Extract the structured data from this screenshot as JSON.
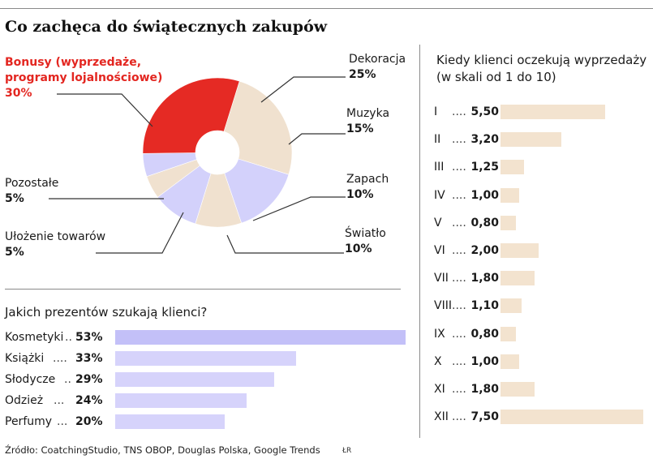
{
  "title": "Co zachęca do świątecznych zakupów",
  "source": "Źródło: CoatchingStudio, TNS OBOP, Douglas Polska, Google Trends",
  "initials": "ŁR",
  "chart_data": [
    {
      "type": "pie",
      "title": "Co zachęca do świątecznych zakupów",
      "slices": [
        {
          "label": "Dekoracja",
          "value": 25,
          "display": "25%",
          "color": "#f0e1cf"
        },
        {
          "label": "Muzyka",
          "value": 15,
          "display": "15%",
          "color": "#d3d1fb"
        },
        {
          "label": "Zapach",
          "value": 10,
          "display": "10%",
          "color": "#f0e1cf"
        },
        {
          "label": "Światło",
          "value": 10,
          "display": "10%",
          "color": "#d3d1fb"
        },
        {
          "label": "Ułożenie towarów",
          "value": 5,
          "display": "5%",
          "color": "#f0e1cf"
        },
        {
          "label": "Pozostałe",
          "value": 5,
          "display": "5%",
          "color": "#d3d1fb"
        },
        {
          "label": "Bonusy (wyprzedaże, programy lojalnościowe)",
          "line1": "Bonusy (wyprzedaże,",
          "line2": "programy lojalnościowe)",
          "value": 30,
          "display": "30%",
          "color": "#e52a24"
        }
      ]
    },
    {
      "type": "bar",
      "title": "Jakich prezentów szukają klienci?",
      "categories": [
        "Kosmetyki",
        "Książki",
        "Słodycze",
        "Odzież",
        "Perfumy"
      ],
      "values": [
        53,
        33,
        29,
        24,
        20
      ],
      "value_labels": [
        "53%",
        "33%",
        "29%",
        "24%",
        "20%"
      ],
      "dots": [
        "..",
        "....",
        "..",
        "...",
        "..."
      ]
    },
    {
      "type": "bar",
      "title": "Kiedy klienci oczekują wyprzedaży",
      "title_line1": "Kiedy klienci oczekują wyprzedaży",
      "title_line2": "(w skali od 1 do 10)",
      "categories": [
        "I",
        "II",
        "III",
        "IV",
        "V",
        "VI",
        "VII",
        "VIII",
        "IX",
        "X",
        "XI",
        "XII"
      ],
      "values": [
        5.5,
        3.2,
        1.25,
        1.0,
        0.8,
        2.0,
        1.8,
        1.1,
        0.8,
        1.0,
        1.8,
        7.5
      ],
      "value_labels": [
        "5,50",
        "3,20",
        "1,25",
        "1,00",
        "0,80",
        "2,00",
        "1,80",
        "1,10",
        "0,80",
        "1,00",
        "1,80",
        "7,50"
      ],
      "dots": "...."
    }
  ]
}
